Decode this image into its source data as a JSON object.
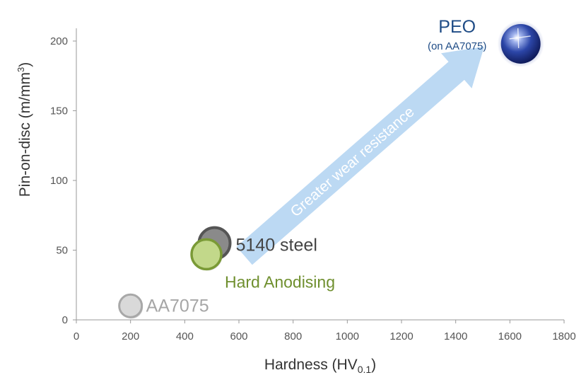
{
  "chart_data": {
    "type": "scatter",
    "xlabel": "Hardness (HV",
    "xlabel_sub": "0.1",
    "xlabel_end": ")",
    "ylabel": "Pin-on-disc (m/mm",
    "ylabel_sup": "3",
    "ylabel_end": ")",
    "xlim": [
      0,
      1800
    ],
    "ylim": [
      0,
      200
    ],
    "x_ticks": [
      "0",
      "200",
      "400",
      "600",
      "800",
      "1000",
      "1200",
      "1400",
      "1600",
      "1800"
    ],
    "y_ticks": [
      "0",
      "50",
      "100",
      "150",
      "200"
    ],
    "grid": false,
    "points": [
      {
        "label": "AA7075",
        "x": 200,
        "y": 10,
        "color": "#bdbdbd",
        "label_color": "#a6a6a6"
      },
      {
        "label": "5140 steel",
        "x": 510,
        "y": 55,
        "color": "#8a8a8a",
        "label_color": "#444444"
      },
      {
        "label": "Hard Anodising",
        "x": 480,
        "y": 47,
        "color": "#c2d88a",
        "label_color": "#6f8f2e"
      },
      {
        "label": "PEO",
        "sublabel": "(on AA7075)",
        "x": 1640,
        "y": 198,
        "color": "#2b3f9a",
        "label_color": "#1f4c86"
      }
    ],
    "annotation": {
      "text": "Greater wear resistance",
      "color": "#bcd9f3"
    }
  }
}
